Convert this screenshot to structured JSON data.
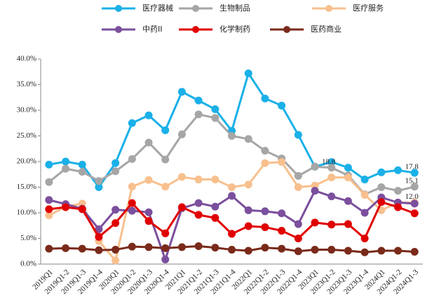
{
  "chart_data": {
    "type": "line",
    "categories": [
      "2019Q1",
      "2019Q1-2",
      "2019Q1-3",
      "2019Q1-4",
      "2020Q1",
      "2020Q1-2",
      "2020Q1-3",
      "2020Q1-4",
      "2021Q1",
      "2021Q1-2",
      "2021Q1-3",
      "2021Q1-4",
      "2022Q1",
      "2022Q1-2",
      "2022Q1-3",
      "2022Q1-4",
      "2023Q1",
      "2023Q1-2",
      "2023Q1-3",
      "2023Q1-4",
      "2024Q1",
      "2024Q1-2",
      "2024Q1-3"
    ],
    "series": [
      {
        "name": "医疗器械",
        "color": "#1ab0e8",
        "values": [
          19.4,
          20.0,
          19.4,
          15.0,
          19.7,
          27.5,
          29.0,
          26.1,
          33.6,
          31.9,
          30.2,
          26.0,
          37.2,
          32.3,
          30.9,
          25.2,
          19.0,
          19.9,
          18.8,
          16.5,
          17.9,
          18.3,
          17.8
        ],
        "value_labels": [
          null,
          null,
          null,
          null,
          null,
          null,
          null,
          null,
          null,
          null,
          null,
          null,
          null,
          null,
          null,
          null,
          null,
          null,
          null,
          null,
          null,
          null,
          "17.8"
        ]
      },
      {
        "name": "生物制品",
        "color": "#a6a6a6",
        "values": [
          16.0,
          18.6,
          18.0,
          16.2,
          18.1,
          20.5,
          23.7,
          20.4,
          25.3,
          29.2,
          28.5,
          25.0,
          24.4,
          22.1,
          20.6,
          17.2,
          19.0,
          18.8,
          17.3,
          13.6,
          15.0,
          14.3,
          15.1
        ],
        "value_labels": [
          null,
          null,
          null,
          null,
          null,
          null,
          null,
          null,
          null,
          null,
          null,
          null,
          null,
          null,
          null,
          null,
          null,
          "18.8",
          null,
          null,
          null,
          null,
          "15.1"
        ]
      },
      {
        "name": "医疗服务",
        "color": "#f8c08e",
        "values": [
          9.5,
          11.2,
          11.8,
          4.5,
          0.7,
          15.1,
          16.4,
          15.1,
          17.0,
          16.5,
          16.5,
          15.0,
          15.5,
          19.7,
          19.9,
          15.0,
          15.3,
          16.9,
          16.9,
          13.5,
          10.5,
          12.0,
          12.0
        ],
        "value_labels": [
          null,
          null,
          null,
          null,
          null,
          null,
          null,
          null,
          null,
          null,
          null,
          null,
          null,
          null,
          null,
          null,
          null,
          null,
          null,
          null,
          null,
          null,
          "12.0"
        ]
      },
      {
        "name": "中药II",
        "color": "#7b4f9d",
        "values": [
          12.5,
          11.7,
          10.8,
          6.8,
          10.6,
          10.4,
          10.1,
          0.9,
          10.9,
          11.9,
          11.2,
          13.3,
          10.5,
          10.3,
          9.9,
          7.8,
          14.3,
          13.2,
          12.3,
          10.0,
          13.0,
          12.0,
          11.8
        ]
      },
      {
        "name": "化学制药",
        "color": "#e00000",
        "values": [
          10.7,
          11.1,
          10.7,
          5.3,
          8.0,
          11.9,
          8.4,
          6.0,
          11.1,
          9.6,
          9.0,
          5.9,
          7.4,
          7.2,
          6.5,
          5.0,
          8.1,
          7.7,
          7.8,
          5.0,
          12.1,
          11.1,
          9.9
        ]
      },
      {
        "name": "医药商业",
        "color": "#7a2a1a",
        "values": [
          3.0,
          3.1,
          3.0,
          2.7,
          2.8,
          3.4,
          3.3,
          3.1,
          3.3,
          3.5,
          3.2,
          2.8,
          2.6,
          3.2,
          3.0,
          2.5,
          2.8,
          2.8,
          2.6,
          2.3,
          2.6,
          2.6,
          2.4
        ]
      }
    ],
    "ylim": [
      0,
      40
    ],
    "yticks": [
      {
        "value": 0,
        "label": "0.0%"
      },
      {
        "value": 5,
        "label": "5.0%"
      },
      {
        "value": 10,
        "label": "10.0%"
      },
      {
        "value": 15,
        "label": "15.0%"
      },
      {
        "value": 20,
        "label": "20.0%"
      },
      {
        "value": 25,
        "label": "25.0%"
      },
      {
        "value": 30,
        "label": "30.0%"
      },
      {
        "value": 35,
        "label": "35.0%"
      },
      {
        "value": 40,
        "label": "40.0%"
      }
    ]
  }
}
